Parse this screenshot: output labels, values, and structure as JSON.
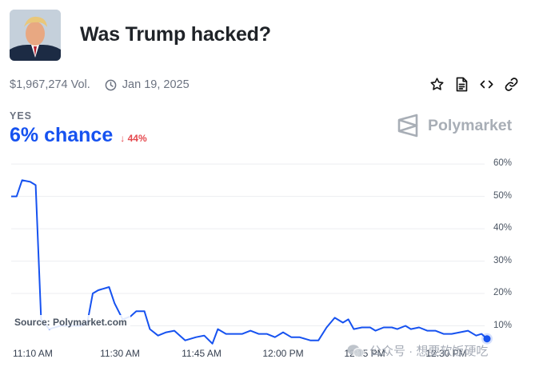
{
  "market": {
    "title": "Was Trump hacked?",
    "volume": "$1,967,274 Vol.",
    "date": "Jan 19, 2025"
  },
  "header_actions": [
    "star-icon",
    "document-icon",
    "code-icon",
    "link-icon"
  ],
  "outcome": {
    "label": "YES",
    "chance": "6% chance",
    "delta": "44%",
    "delta_direction": "down"
  },
  "brand": {
    "name": "Polymarket"
  },
  "source_note": "Source: Polymarket.com",
  "watermark": "公众号 · 想要软饭硬吃",
  "colors": {
    "line": "#1652f0",
    "down": "#e5484d",
    "gridline": "#eceef1"
  },
  "chart_data": {
    "type": "line",
    "title": "",
    "xlabel": "",
    "ylabel": "",
    "x_ticks": [
      "11:10 AM",
      "11:30 AM",
      "11:45 AM",
      "12:00 PM",
      "12:15 PM",
      "12:30 PM"
    ],
    "y_ticks": [
      "60%",
      "50%",
      "40%",
      "30%",
      "20%",
      "10%"
    ],
    "ylim": [
      0,
      63
    ],
    "xlim": [
      0,
      87.5
    ],
    "grid": "horizontal",
    "x_units": "minutes after 11:10 AM",
    "series": [
      {
        "values": [
          [
            0,
            50
          ],
          [
            1,
            50
          ],
          [
            2,
            55
          ],
          [
            3.5,
            54.5
          ],
          [
            4.5,
            53.5
          ],
          [
            5.5,
            12
          ],
          [
            7,
            9
          ],
          [
            9,
            10
          ],
          [
            11,
            10
          ],
          [
            13,
            10
          ],
          [
            14,
            11
          ],
          [
            15,
            20
          ],
          [
            16,
            21
          ],
          [
            18,
            22
          ],
          [
            19,
            17
          ],
          [
            20.5,
            12
          ],
          [
            22,
            13
          ],
          [
            23,
            14.5
          ],
          [
            24.5,
            14.5
          ],
          [
            25.5,
            9
          ],
          [
            27,
            7
          ],
          [
            28.5,
            8
          ],
          [
            30,
            8.5
          ],
          [
            32,
            5.5
          ],
          [
            34,
            6.5
          ],
          [
            35.5,
            7
          ],
          [
            37,
            4.5
          ],
          [
            38,
            9
          ],
          [
            39.5,
            7.5
          ],
          [
            41,
            7.5
          ],
          [
            42.5,
            7.5
          ],
          [
            44,
            8.5
          ],
          [
            45.5,
            7.5
          ],
          [
            47,
            7.5
          ],
          [
            48.5,
            6.5
          ],
          [
            50,
            8
          ],
          [
            51.5,
            6.5
          ],
          [
            53,
            6.5
          ],
          [
            55,
            5.5
          ],
          [
            56.5,
            5.5
          ],
          [
            58,
            9.5
          ],
          [
            59.5,
            12.5
          ],
          [
            61,
            11
          ],
          [
            62,
            12
          ],
          [
            63,
            9
          ],
          [
            64.5,
            9.5
          ],
          [
            66,
            9.5
          ],
          [
            67,
            8.5
          ],
          [
            68.5,
            9.5
          ],
          [
            70,
            9.5
          ],
          [
            71,
            9
          ],
          [
            72.5,
            10
          ],
          [
            73.5,
            9
          ],
          [
            75,
            9.5
          ],
          [
            76.5,
            8.5
          ],
          [
            78,
            8.5
          ],
          [
            79.5,
            7.5
          ],
          [
            81,
            7.5
          ],
          [
            82.5,
            8
          ],
          [
            84,
            8.5
          ],
          [
            85.5,
            7
          ],
          [
            86.5,
            7.5
          ],
          [
            87.5,
            6
          ]
        ]
      }
    ]
  }
}
